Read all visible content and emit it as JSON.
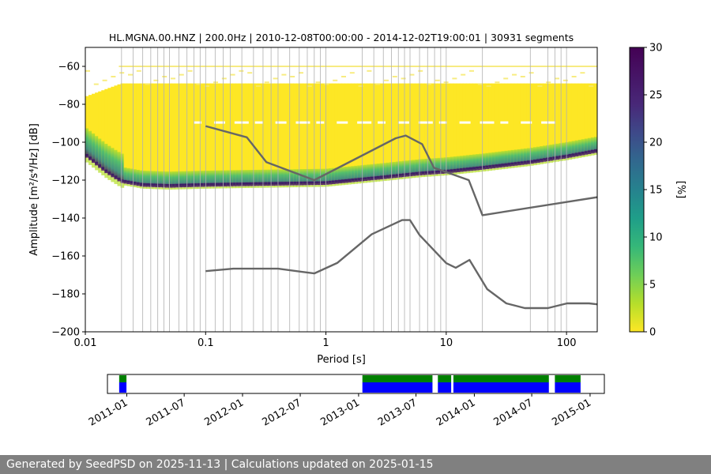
{
  "chart_data": [
    {
      "type": "heatmap",
      "title": "HL.MGNA.00.HNZ | 200.0Hz | 2010-12-08T00:00:00 - 2014-12-02T19:00:01 | 30931 segments",
      "xlabel": "Period [s]",
      "ylabel": "Amplitude [m²/s⁴/Hz] [dB]",
      "x_scale": "log",
      "xlim": [
        0.01,
        180
      ],
      "ylim": [
        -200,
        -50
      ],
      "x_ticks": [
        0.01,
        0.1,
        1,
        10,
        100
      ],
      "x_tick_labels": [
        "0.01",
        "0.1",
        "1",
        "10",
        "100"
      ],
      "y_ticks": [
        -200,
        -180,
        -160,
        -140,
        -120,
        -100,
        -80,
        -60
      ],
      "y_tick_labels": [
        "−200",
        "−180",
        "−160",
        "−140",
        "−120",
        "−100",
        "−80",
        "−60"
      ],
      "grid_periods": [
        0.02,
        0.025,
        0.03,
        0.035,
        0.04,
        0.045,
        0.05,
        0.06,
        0.07,
        0.08,
        0.09,
        0.1,
        0.12,
        0.14,
        0.16,
        0.2,
        0.25,
        0.3,
        0.35,
        0.4,
        0.5,
        0.6,
        0.7,
        0.8,
        0.9,
        1,
        2,
        2.5,
        3,
        3.5,
        4,
        4.5,
        5,
        6,
        7,
        8,
        9,
        10,
        20,
        50,
        70,
        80,
        90,
        100
      ],
      "colorbar": {
        "label": "[%]",
        "range": [
          0,
          30
        ],
        "ticks": [
          "0",
          "5",
          "10",
          "15",
          "20",
          "25",
          "30"
        ],
        "colormap": "viridis"
      },
      "heatmap_summary": {
        "mode_curve": [
          [
            0.01,
            -106
          ],
          [
            0.015,
            -115
          ],
          [
            0.02,
            -120
          ],
          [
            0.03,
            -122
          ],
          [
            0.05,
            -122.5
          ],
          [
            0.1,
            -122
          ],
          [
            0.3,
            -121.5
          ],
          [
            1,
            -121
          ],
          [
            3,
            -118
          ],
          [
            6,
            -116
          ],
          [
            10,
            -115
          ],
          [
            20,
            -113
          ],
          [
            50,
            -110
          ],
          [
            100,
            -107
          ],
          [
            180,
            -104
          ]
        ],
        "yellow_band_top": [
          [
            0.01,
            -76
          ],
          [
            0.02,
            -69
          ],
          [
            180,
            -69
          ]
        ],
        "sparse_top": -55
      },
      "nlnm": [
        [
          0.1,
          -168
        ],
        [
          0.17,
          -166.7
        ],
        [
          0.4,
          -166.7
        ],
        [
          0.8,
          -169.2
        ],
        [
          1.24,
          -163.7
        ],
        [
          2.4,
          -148.6
        ],
        [
          4.3,
          -141.1
        ],
        [
          5,
          -141.1
        ],
        [
          6,
          -149
        ],
        [
          10,
          -163.8
        ],
        [
          12,
          -166.2
        ],
        [
          15.6,
          -162.1
        ],
        [
          21.9,
          -177.5
        ],
        [
          31.6,
          -185
        ],
        [
          45,
          -187.5
        ],
        [
          70,
          -187.5
        ],
        [
          101,
          -185
        ],
        [
          154,
          -185
        ],
        [
          180,
          -185.5
        ]
      ],
      "nhnm": [
        [
          0.1,
          -91.5
        ],
        [
          0.22,
          -97.4
        ],
        [
          0.32,
          -110.5
        ],
        [
          0.8,
          -120
        ],
        [
          3.8,
          -97.9
        ],
        [
          4.6,
          -96.5
        ],
        [
          6.3,
          -101
        ],
        [
          7.9,
          -113.5
        ],
        [
          15.4,
          -120
        ],
        [
          20,
          -138.5
        ],
        [
          180,
          -129
        ]
      ]
    },
    {
      "type": "timeline",
      "ticks": [
        "2011-01",
        "2011-07",
        "2012-01",
        "2012-07",
        "2013-01",
        "2013-07",
        "2014-01",
        "2014-07",
        "2015-01"
      ],
      "start": "2010-11-01",
      "end": "2015-02-15",
      "availability": [
        [
          "2010-12-08",
          "2010-12-31"
        ],
        [
          "2013-01-13",
          "2013-08-22"
        ],
        [
          "2013-09-08",
          "2013-10-20"
        ],
        [
          "2013-10-27",
          "2014-08-24"
        ],
        [
          "2014-09-12",
          "2014-12-02"
        ]
      ],
      "colors": {
        "top": "#008000",
        "bottom": "#0000ff"
      }
    }
  ],
  "footer": {
    "text": "Generated by SeedPSD on 2025-11-13 | Calculations updated on 2025-01-15"
  }
}
